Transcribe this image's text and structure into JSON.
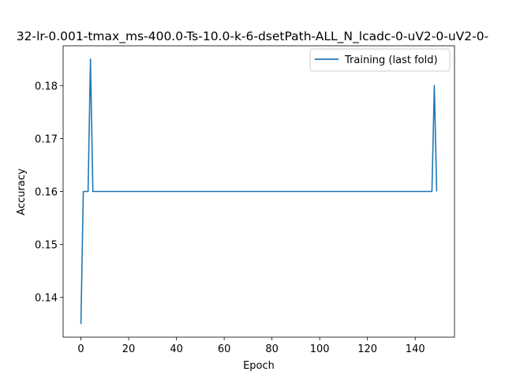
{
  "chart_data": {
    "type": "line",
    "title": "32-lr-0.001-tmax_ms-400.0-Ts-10.0-k-6-dsetPath-ALL_N_lcadc-0-uV2-0-uV2-0-",
    "xlabel": "Epoch",
    "ylabel": "Accuracy",
    "xlim": [
      -7.45,
      156.45
    ],
    "ylim": [
      0.1325,
      0.1875
    ],
    "xticks": [
      0,
      20,
      40,
      60,
      80,
      100,
      120,
      140
    ],
    "yticks": [
      0.14,
      0.15,
      0.16,
      0.17,
      0.18
    ],
    "ytick_labels": [
      "0.14",
      "0.15",
      "0.16",
      "0.17",
      "0.18"
    ],
    "grid": false,
    "legend_position": "top-right",
    "series": [
      {
        "name": "Training (last fold)",
        "color": "#1f77b4",
        "points": [
          [
            0,
            0.135
          ],
          [
            1,
            0.16
          ],
          [
            2,
            0.16
          ],
          [
            3,
            0.16
          ],
          [
            4,
            0.185
          ],
          [
            5,
            0.16
          ],
          [
            6,
            0.16
          ],
          [
            147,
            0.16
          ],
          [
            148,
            0.18
          ],
          [
            149,
            0.16
          ]
        ]
      }
    ]
  }
}
